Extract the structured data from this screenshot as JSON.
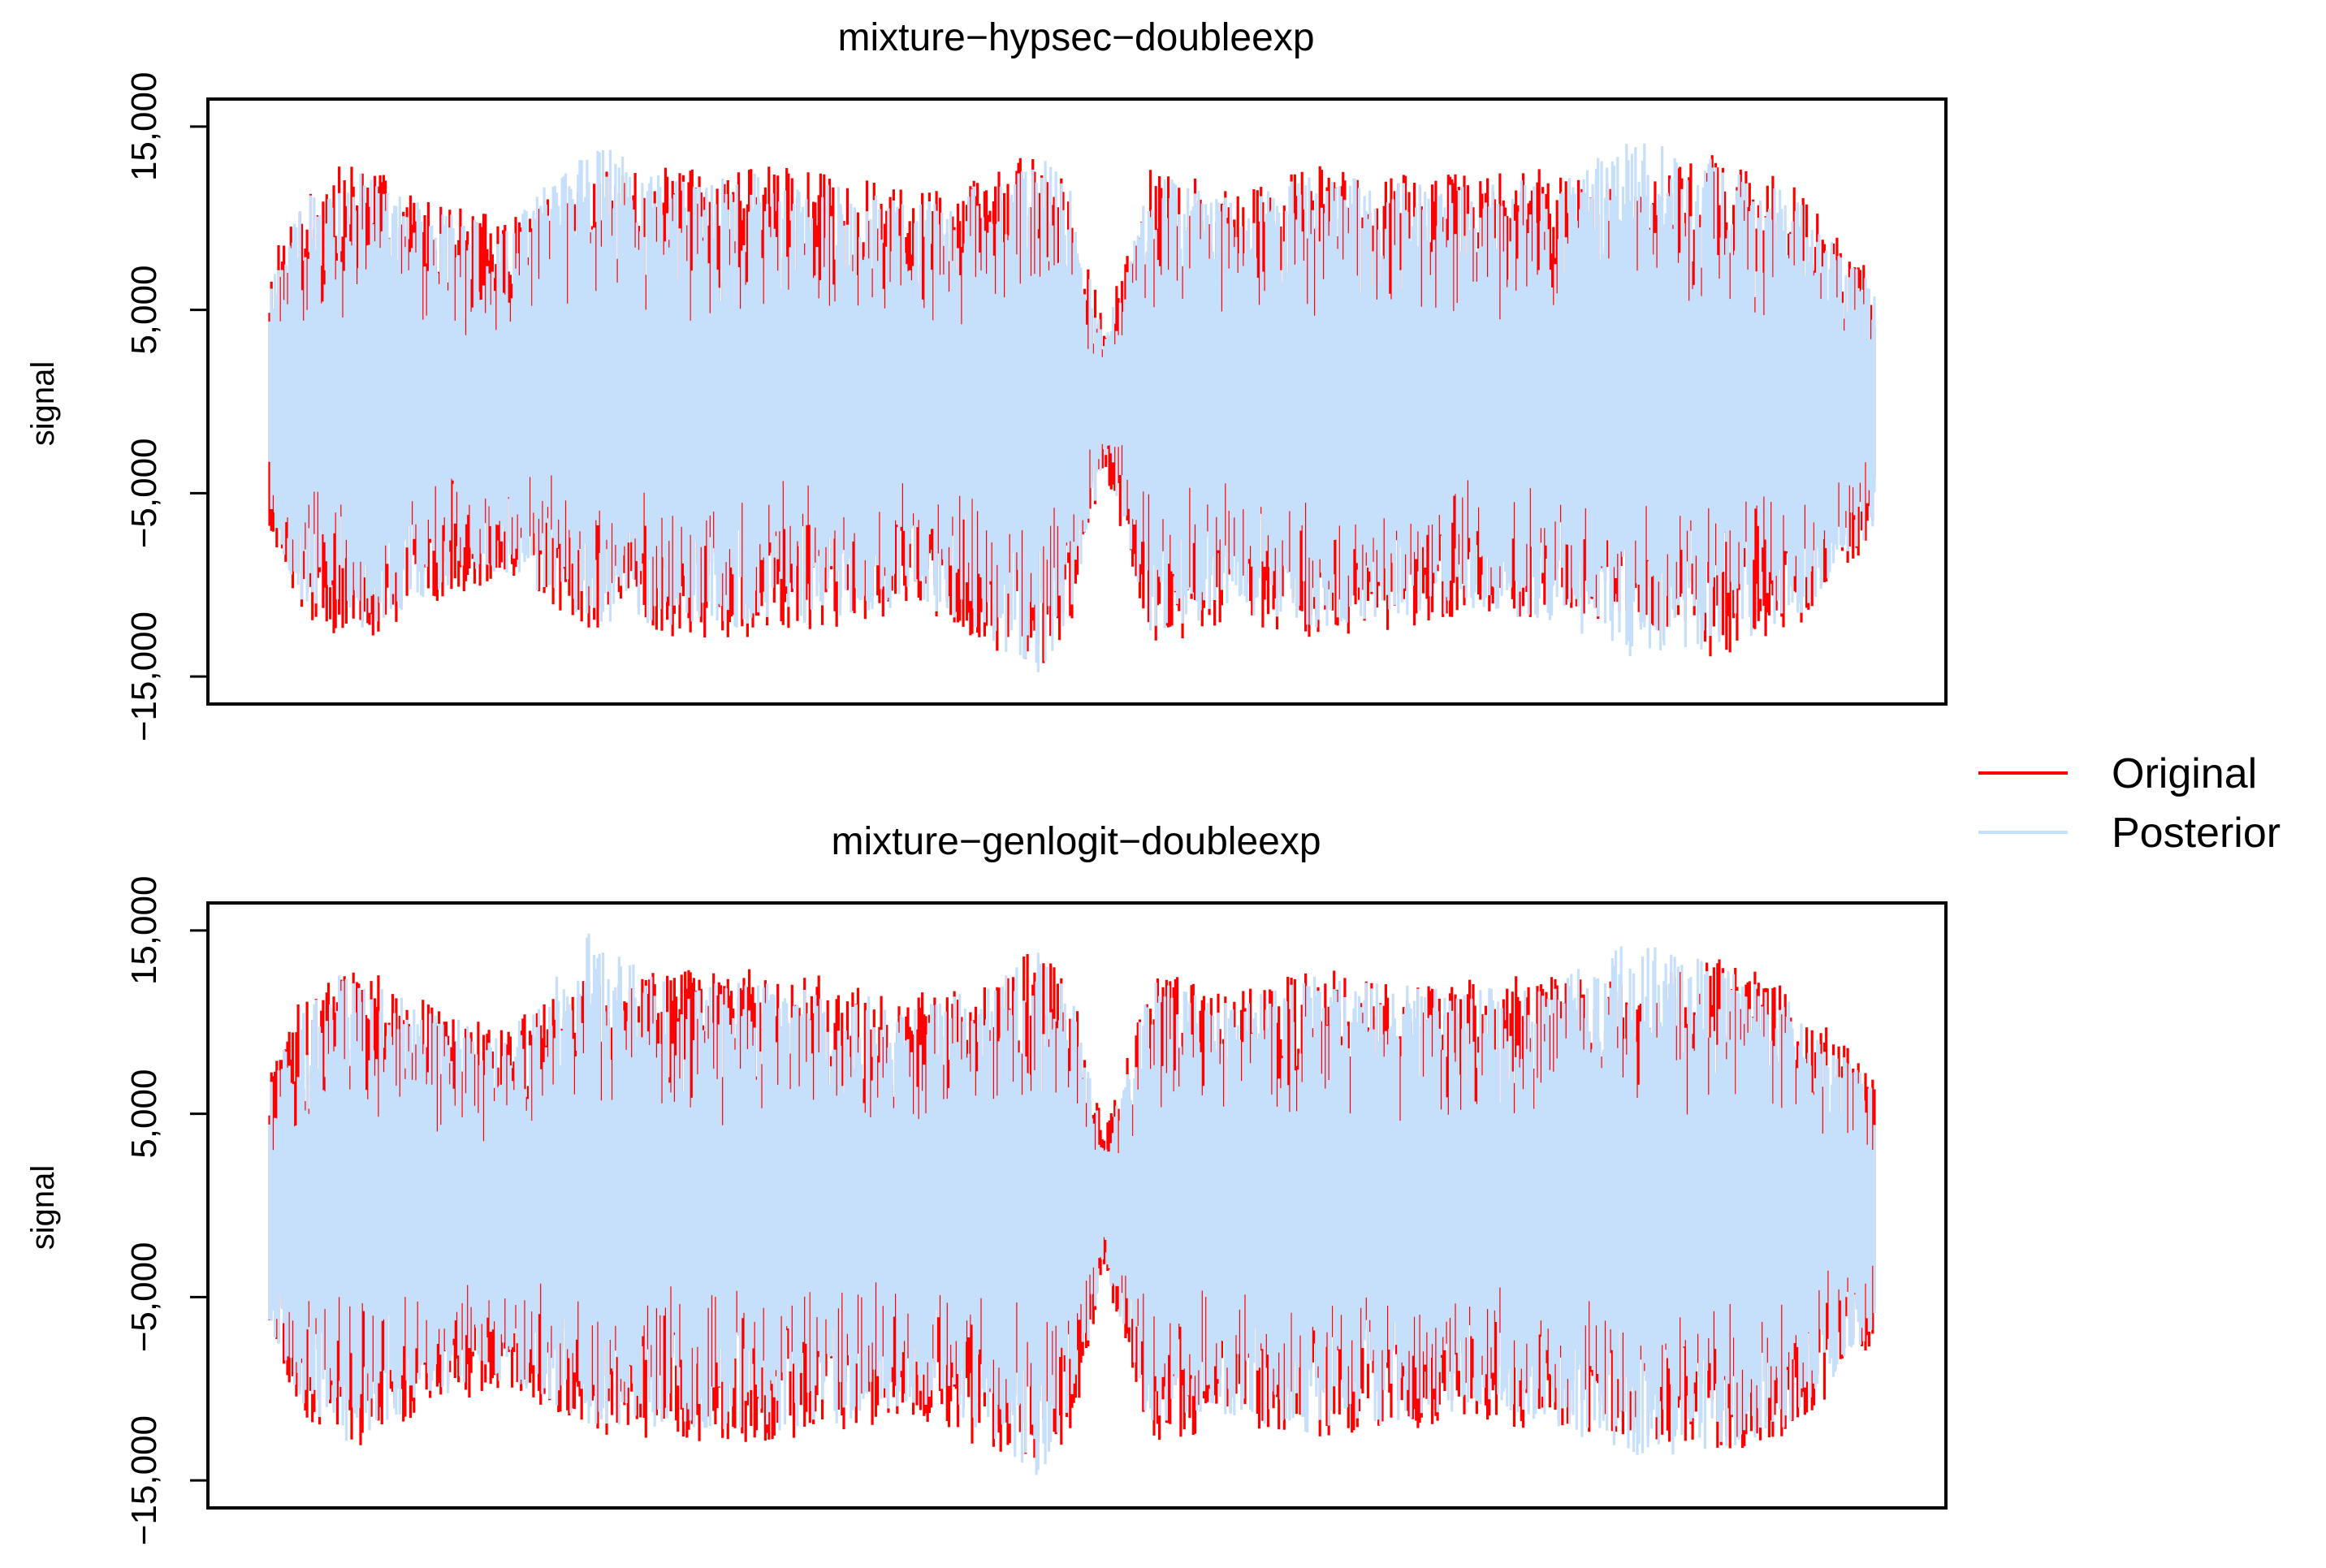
{
  "legend": {
    "entries": [
      {
        "label": "Original",
        "color": "#ff0000"
      },
      {
        "label": "Posterior",
        "color": "#c6e0fb"
      }
    ]
  },
  "chart_data": [
    {
      "type": "line",
      "title": "mixture−hypsec−doubleexp",
      "xlabel": "",
      "ylabel": "signal",
      "ylim": [
        -16500,
        16500
      ],
      "ytick_values": [
        -15000,
        -5000,
        5000,
        15000
      ],
      "ytick_labels": [
        "−15,000",
        "−5,000",
        "5,000",
        "15,000"
      ],
      "series": [
        {
          "name": "Original",
          "color": "#ff0000",
          "x": [
            0,
            0.02,
            0.05,
            0.1,
            0.15,
            0.2,
            0.25,
            0.3,
            0.35,
            0.4,
            0.45,
            0.48,
            0.5,
            0.52,
            0.55,
            0.6,
            0.65,
            0.7,
            0.75,
            0.8,
            0.85,
            0.9,
            0.95,
            1.0
          ],
          "upper": [
            7500,
            11500,
            13500,
            11000,
            10000,
            12500,
            12800,
            13000,
            12500,
            11500,
            12500,
            14200,
            12000,
            4000,
            13000,
            11500,
            13000,
            12500,
            12500,
            12800,
            12000,
            13800,
            11800,
            7000
          ],
          "lower": [
            -7000,
            -11500,
            -13500,
            -11000,
            -10000,
            -12500,
            -12800,
            -13000,
            -12500,
            -11500,
            -13500,
            -14500,
            -12500,
            -3500,
            -13500,
            -12000,
            -13000,
            -12500,
            -12000,
            -12500,
            -12500,
            -14000,
            -12500,
            -7500
          ]
        },
        {
          "name": "Posterior",
          "color": "#c6e0fb",
          "x": [
            0,
            0.02,
            0.05,
            0.1,
            0.15,
            0.2,
            0.25,
            0.3,
            0.35,
            0.4,
            0.45,
            0.48,
            0.5,
            0.52,
            0.55,
            0.6,
            0.65,
            0.7,
            0.75,
            0.8,
            0.85,
            0.9,
            0.95,
            1.0
          ],
          "upper": [
            6500,
            11000,
            13000,
            10500,
            9500,
            15000,
            12000,
            12500,
            12000,
            11000,
            12000,
            14000,
            11500,
            3500,
            12500,
            11000,
            12500,
            12000,
            12000,
            12200,
            14500,
            13200,
            11200,
            6500
          ],
          "lower": [
            -6500,
            -11000,
            -13000,
            -10500,
            -9500,
            -12000,
            -12200,
            -12500,
            -12000,
            -11000,
            -13000,
            -15500,
            -12000,
            -3000,
            -13000,
            -11500,
            -12500,
            -12000,
            -11500,
            -12000,
            -14000,
            -13500,
            -12000,
            -7000
          ]
        }
      ]
    },
    {
      "type": "line",
      "title": "mixture−genlogit−doubleexp",
      "xlabel": "",
      "ylabel": "signal",
      "ylim": [
        -16500,
        16500
      ],
      "ytick_values": [
        -15000,
        -5000,
        5000,
        15000
      ],
      "ytick_labels": [
        "−15,000",
        "−5,000",
        "5,000",
        "15,000"
      ],
      "series": [
        {
          "name": "Original",
          "color": "#ff0000",
          "x": [
            0,
            0.02,
            0.05,
            0.1,
            0.15,
            0.2,
            0.25,
            0.3,
            0.35,
            0.4,
            0.45,
            0.48,
            0.5,
            0.52,
            0.55,
            0.6,
            0.65,
            0.7,
            0.75,
            0.8,
            0.85,
            0.9,
            0.95,
            1.0
          ],
          "upper": [
            7500,
            11500,
            13500,
            11000,
            10000,
            12500,
            12800,
            13000,
            12500,
            11500,
            12500,
            14200,
            12000,
            4000,
            13000,
            11500,
            13000,
            12500,
            12500,
            12800,
            12000,
            13800,
            11800,
            7000
          ],
          "lower": [
            -7000,
            -11500,
            -13500,
            -11000,
            -10000,
            -12500,
            -12800,
            -13000,
            -12500,
            -11500,
            -13500,
            -14500,
            -12500,
            -3500,
            -13500,
            -12000,
            -13000,
            -12500,
            -12000,
            -12500,
            -12500,
            -14000,
            -12500,
            -7500
          ]
        },
        {
          "name": "Posterior",
          "color": "#c6e0fb",
          "x": [
            0,
            0.02,
            0.05,
            0.1,
            0.15,
            0.2,
            0.25,
            0.3,
            0.35,
            0.4,
            0.45,
            0.48,
            0.5,
            0.52,
            0.55,
            0.6,
            0.65,
            0.7,
            0.75,
            0.8,
            0.85,
            0.9,
            0.95,
            1.0
          ],
          "upper": [
            6500,
            11000,
            13000,
            10500,
            9500,
            15000,
            12000,
            12500,
            12000,
            11000,
            12000,
            14000,
            11500,
            3500,
            12500,
            11000,
            12500,
            12000,
            12000,
            12200,
            14500,
            13200,
            11200,
            6500
          ],
          "lower": [
            -6500,
            -11000,
            -13000,
            -10500,
            -9500,
            -12000,
            -12200,
            -12500,
            -12000,
            -11000,
            -13000,
            -15500,
            -12000,
            -3000,
            -13000,
            -11500,
            -12500,
            -12000,
            -11500,
            -12000,
            -14000,
            -13500,
            -12000,
            -7000
          ]
        }
      ]
    }
  ]
}
